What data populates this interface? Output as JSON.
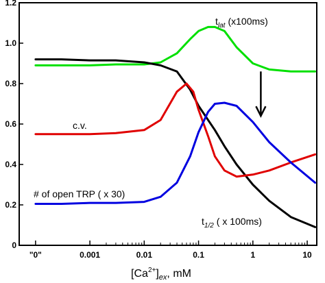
{
  "chart_data": {
    "type": "line",
    "xscale": "log",
    "x_ticks": [
      {
        "value": 0.0001,
        "label": "\"0\""
      },
      {
        "value": 0.001,
        "label": "0.001"
      },
      {
        "value": 0.01,
        "label": "0.01"
      },
      {
        "value": 0.1,
        "label": "0.1"
      },
      {
        "value": 1,
        "label": "1"
      },
      {
        "value": 10,
        "label": "10"
      }
    ],
    "y_ticks": [
      "0",
      "0.2",
      "0.4",
      "0.6",
      "0.8",
      "1.0",
      "1.2"
    ],
    "ylim": [
      0,
      1.2
    ],
    "xlabel": {
      "main": "[Ca",
      "sup": "2+",
      "close": "]",
      "sub": "ex",
      "unit": ",   mM"
    },
    "grid": false,
    "series": [
      {
        "name": "t_lat (x100ms)",
        "color": "#00e000",
        "x": [
          0.0001,
          0.0003,
          0.001,
          0.003,
          0.01,
          0.02,
          0.04,
          0.07,
          0.1,
          0.15,
          0.2,
          0.3,
          0.5,
          1,
          2,
          5,
          14
        ],
        "y": [
          0.89,
          0.89,
          0.89,
          0.895,
          0.895,
          0.905,
          0.95,
          1.02,
          1.06,
          1.08,
          1.08,
          1.06,
          0.98,
          0.9,
          0.87,
          0.86,
          0.86
        ]
      },
      {
        "name": "t_1/2 (x 100ms)",
        "color": "#000000",
        "x": [
          0.0001,
          0.0003,
          0.001,
          0.003,
          0.01,
          0.02,
          0.04,
          0.07,
          0.1,
          0.2,
          0.3,
          0.5,
          1,
          2,
          5,
          14
        ],
        "y": [
          0.92,
          0.92,
          0.915,
          0.915,
          0.905,
          0.89,
          0.86,
          0.77,
          0.69,
          0.57,
          0.49,
          0.4,
          0.3,
          0.22,
          0.14,
          0.09
        ]
      },
      {
        "name": "c.v.",
        "color": "#e00000",
        "x": [
          0.0001,
          0.0003,
          0.001,
          0.003,
          0.01,
          0.02,
          0.04,
          0.06,
          0.08,
          0.1,
          0.15,
          0.2,
          0.3,
          0.5,
          1,
          2,
          5,
          14
        ],
        "y": [
          0.55,
          0.55,
          0.55,
          0.555,
          0.57,
          0.62,
          0.76,
          0.8,
          0.76,
          0.67,
          0.54,
          0.44,
          0.37,
          0.34,
          0.35,
          0.37,
          0.41,
          0.45
        ]
      },
      {
        "name": "# of open TRP ( x 30)",
        "color": "#0000e0",
        "x": [
          0.0001,
          0.0003,
          0.001,
          0.003,
          0.01,
          0.02,
          0.04,
          0.07,
          0.1,
          0.15,
          0.2,
          0.3,
          0.5,
          1,
          2,
          5,
          14
        ],
        "y": [
          0.205,
          0.205,
          0.21,
          0.21,
          0.215,
          0.24,
          0.31,
          0.44,
          0.56,
          0.66,
          0.7,
          0.705,
          0.69,
          0.61,
          0.51,
          0.41,
          0.31
        ]
      }
    ],
    "annotations": [
      {
        "text": "t",
        "sub": "lat",
        "rest": "(x100ms)"
      },
      {
        "text": "c.v."
      },
      {
        "text": "# of open TRP ( x 30)"
      },
      {
        "text": "t",
        "sub": "1/2",
        "rest": "( x 100ms)"
      }
    ],
    "arrow": {
      "x": 1.4,
      "y_from": 0.86,
      "y_to": 0.64,
      "direction": "down"
    }
  }
}
